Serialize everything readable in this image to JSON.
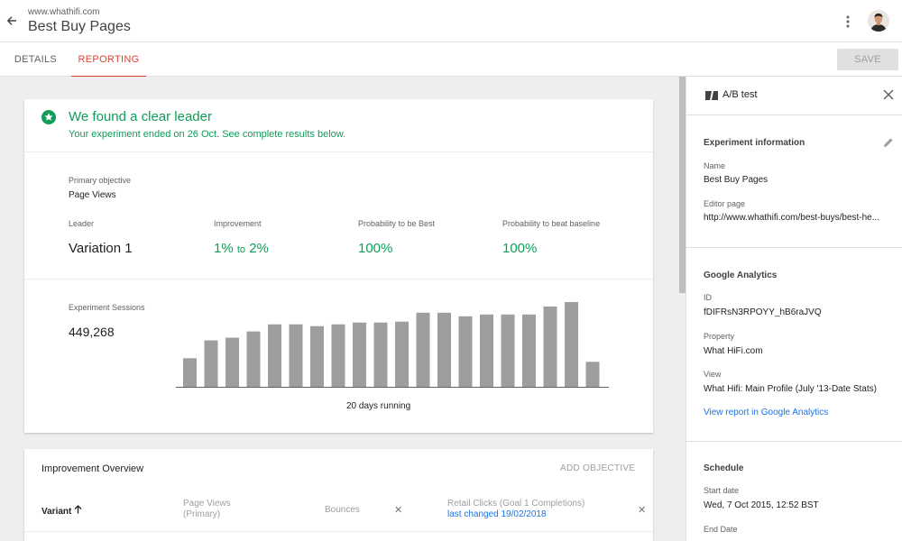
{
  "header": {
    "url": "www.whathifi.com",
    "title": "Best Buy Pages",
    "back_icon": "arrow-back-icon",
    "menu_icon": "more-vert-icon"
  },
  "tabs": [
    {
      "label": "DETAILS",
      "active": false
    },
    {
      "label": "REPORTING",
      "active": true
    }
  ],
  "save_label": "SAVE",
  "colors": {
    "accent": "#db4437",
    "success": "#0f9d58",
    "link": "#1a73e8"
  },
  "result": {
    "title": "We found a clear leader",
    "subtitle": "Your experiment ended on 26 Oct. See complete results below.",
    "primary_objective_label": "Primary objective",
    "primary_objective": "Page Views",
    "leader_label": "Leader",
    "leader": "Variation 1",
    "improvement_label": "Improvement",
    "improvement_low": "1%",
    "improvement_to": "to",
    "improvement_high": "2%",
    "prob_best_label": "Probability to be Best",
    "prob_best": "100%",
    "prob_baseline_label": "Probability to beat baseline",
    "prob_baseline": "100%",
    "sessions_label": "Experiment Sessions",
    "sessions": "449,268",
    "days_running": "20 days running"
  },
  "chart_data": {
    "type": "bar",
    "series": [
      {
        "values": [
          32,
          52,
          55,
          62,
          70,
          70,
          68,
          70,
          72,
          72,
          73,
          83,
          83,
          79,
          81,
          81,
          81,
          90,
          95,
          28
        ]
      }
    ]
  },
  "overview": {
    "title": "Improvement Overview",
    "add_objective": "ADD OBJECTIVE",
    "variant_header": "Variant",
    "col_page_views": "Page Views",
    "col_page_views_sub": "(Primary)",
    "col_bounces": "Bounces",
    "col_retail": "Retail Clicks (Goal 1 Completions)",
    "col_retail_link": "last changed 19/02/2018"
  },
  "panel": {
    "title": "A/B test",
    "experiment_section": "Experiment information",
    "name_label": "Name",
    "name": "Best Buy Pages",
    "editor_label": "Editor page",
    "editor": "http://www.whathifi.com/best-buys/best-he...",
    "ga_section": "Google Analytics",
    "id_label": "ID",
    "id": "fDIFRsN3RPOYY_hB6raJVQ",
    "property_label": "Property",
    "property": "What HiFi.com",
    "view_label": "View",
    "view": "What Hifi: Main Profile (July '13-Date Stats)",
    "view_report": "View report in Google Analytics",
    "schedule_section": "Schedule",
    "start_label": "Start date",
    "start": "Wed, 7 Oct 2015, 12:52 BST",
    "end_label": "End Date"
  }
}
